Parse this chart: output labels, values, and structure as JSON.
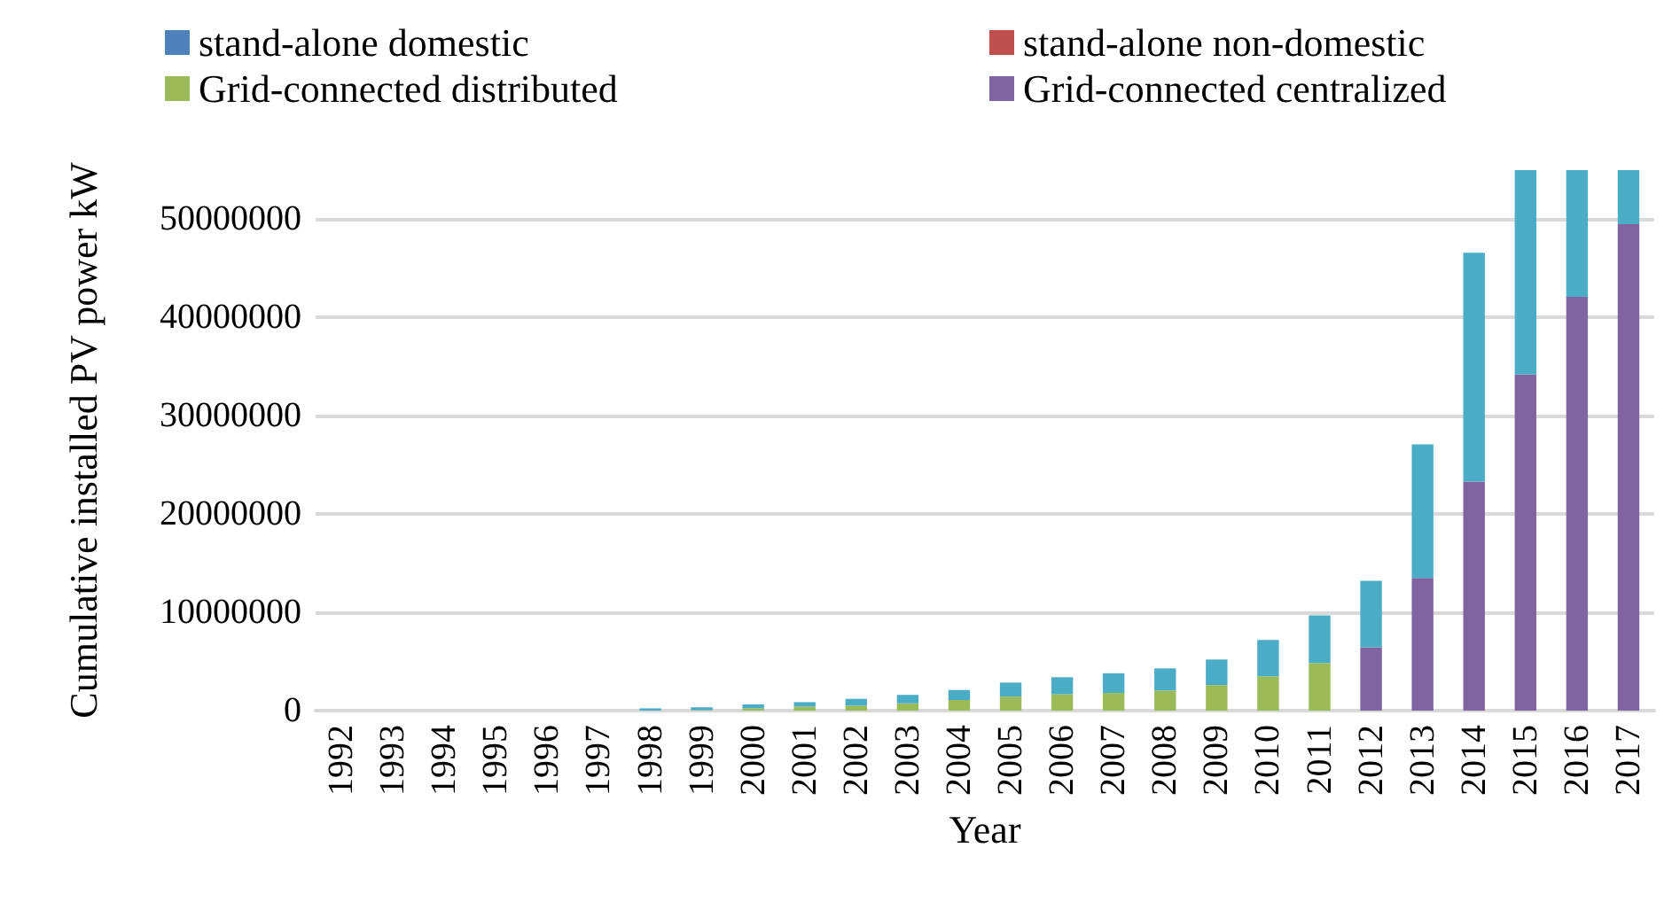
{
  "chart_data": {
    "type": "bar",
    "stacked": true,
    "xlabel": "Year",
    "ylabel": "Cumulative installed PV power kW",
    "categories": [
      "1992",
      "1993",
      "1994",
      "1995",
      "1996",
      "1997",
      "1998",
      "1999",
      "2000",
      "2001",
      "2002",
      "2003",
      "2004",
      "2005",
      "2006",
      "2007",
      "2008",
      "2009",
      "2010",
      "2011",
      "2012",
      "2013",
      "2014",
      "2015",
      "2016",
      "2017"
    ],
    "series": [
      {
        "name": "stand-alone domestic",
        "color": "#4f81bd",
        "values": [
          null,
          null,
          null,
          null,
          null,
          null,
          null,
          null,
          null,
          null,
          null,
          null,
          null,
          null,
          null,
          null,
          null,
          null,
          null,
          null,
          null,
          null,
          null,
          null,
          null,
          null
        ]
      },
      {
        "name": "stand-alone non-domestic",
        "color": "#c0504d",
        "values": [
          null,
          null,
          null,
          null,
          null,
          null,
          null,
          null,
          null,
          null,
          null,
          null,
          null,
          null,
          null,
          null,
          null,
          null,
          null,
          null,
          null,
          null,
          null,
          null,
          null,
          null
        ]
      },
      {
        "name": "Grid-connected distributed",
        "color": "#9bbb59",
        "values": [
          null,
          null,
          null,
          null,
          null,
          null,
          null,
          50000,
          230000,
          400000,
          500000,
          740000,
          1080000,
          1430000,
          1660000,
          1800000,
          2050000,
          2600000,
          3500000,
          4850000,
          null,
          null,
          null,
          null,
          null,
          null
        ]
      },
      {
        "name": "Grid-connected centralized",
        "color": "#8064a2",
        "values": [
          null,
          null,
          null,
          null,
          null,
          null,
          null,
          null,
          null,
          null,
          null,
          null,
          null,
          null,
          null,
          null,
          null,
          null,
          null,
          null,
          6450000,
          13500000,
          23300000,
          34200000,
          42100000,
          49500000
        ]
      },
      {
        "color": "#4bacc6",
        "values": [
          null,
          null,
          null,
          null,
          null,
          null,
          230000,
          290000,
          400000,
          460000,
          700000,
          860000,
          1020000,
          1420000,
          1740000,
          2000000,
          2250000,
          2600000,
          3700000,
          4850000,
          6750000,
          13600000,
          23300000,
          20800000,
          12900000,
          5500000
        ]
      }
    ],
    "ylim": [
      0,
      55000000
    ],
    "yticks": [
      0,
      10000000,
      20000000,
      30000000,
      40000000,
      50000000
    ],
    "grid": "y",
    "legend": "top"
  }
}
